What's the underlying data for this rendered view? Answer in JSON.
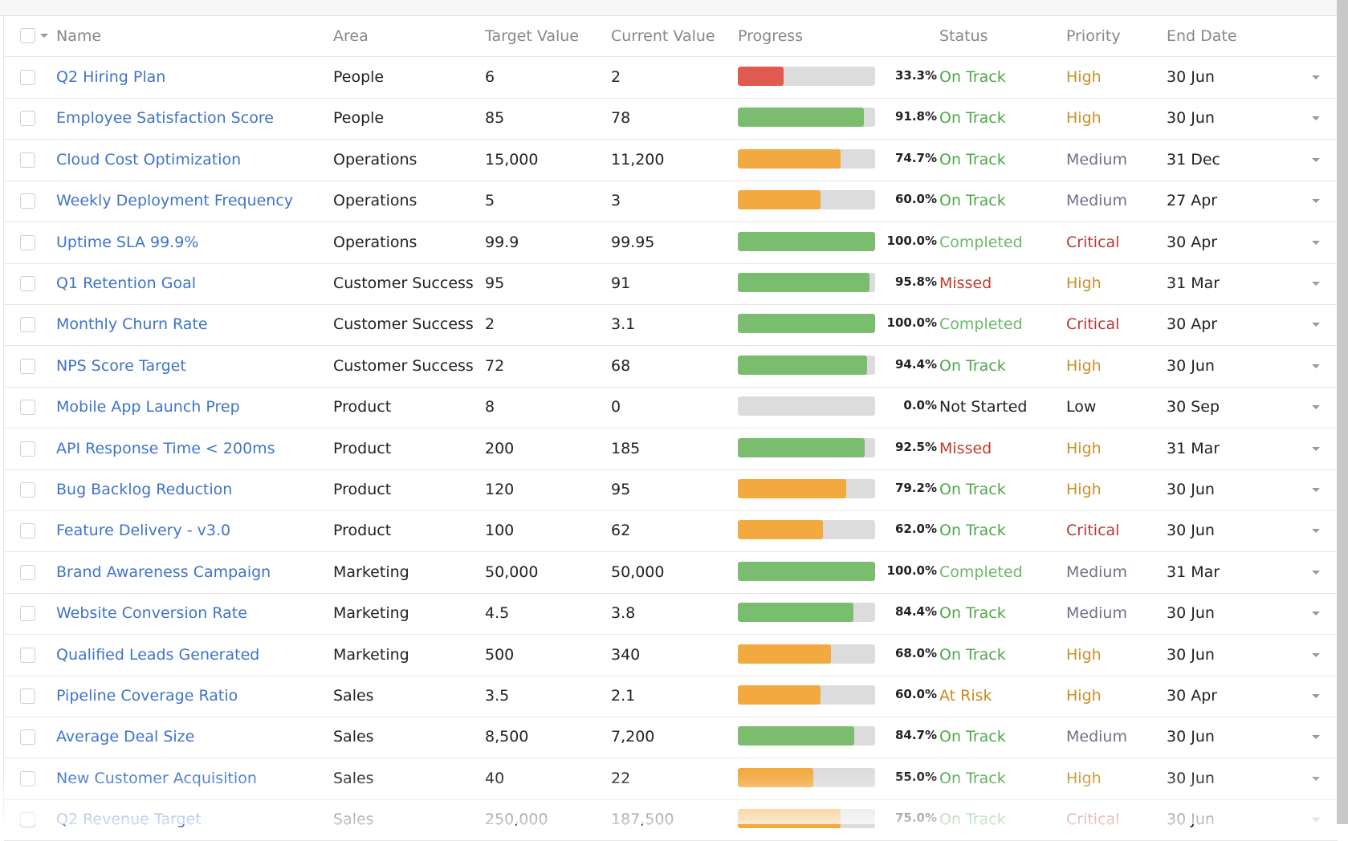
{
  "table": {
    "header": [
      "Name",
      "Area",
      "Target Value",
      "Current Value",
      "Progress",
      "Status",
      "Priority",
      "End Date"
    ],
    "rows": [
      {
        "name": "Q2 Hiring Plan",
        "area": "People",
        "target": "6",
        "current": "2",
        "progress": 33.3,
        "progress_label": "33.3%",
        "bar_color": "#e05a50",
        "status": "On Track",
        "status_color": "#4fa84a",
        "priority": "High",
        "priority_color": "#c8902a",
        "end_date": "30 Jun"
      },
      {
        "name": "Employee Satisfaction Score",
        "area": "People",
        "target": "85",
        "current": "78",
        "progress": 91.8,
        "progress_label": "91.8%",
        "bar_color": "#7bbd6f",
        "status": "On Track",
        "status_color": "#4fa84a",
        "priority": "High",
        "priority_color": "#c8902a",
        "end_date": "30 Jun"
      },
      {
        "name": "Cloud Cost Optimization",
        "area": "Operations",
        "target": "15,000",
        "current": "11,200",
        "progress": 74.7,
        "progress_label": "74.7%",
        "bar_color": "#f2a940",
        "status": "On Track",
        "status_color": "#4fa84a",
        "priority": "Medium",
        "priority_color": "#766d89",
        "end_date": "31 Dec"
      },
      {
        "name": "Weekly Deployment Frequency",
        "area": "Operations",
        "target": "5",
        "current": "3",
        "progress": 60.0,
        "progress_label": "60.0%",
        "bar_color": "#f2a940",
        "status": "On Track",
        "status_color": "#4fa84a",
        "priority": "Medium",
        "priority_color": "#766d89",
        "end_date": "27 Apr"
      },
      {
        "name": "Uptime SLA 99.9%",
        "area": "Operations",
        "target": "99.9",
        "current": "99.95",
        "progress": 100.0,
        "progress_label": "100.0%",
        "bar_color": "#7bbd6f",
        "status": "Completed",
        "status_color": "#6cba66",
        "priority": "Critical",
        "priority_color": "#b83a3a",
        "end_date": "30 Apr"
      },
      {
        "name": "Q1 Retention Goal",
        "area": "Customer Success",
        "target": "95",
        "current": "91",
        "progress": 95.8,
        "progress_label": "95.8%",
        "bar_color": "#7bbd6f",
        "status": "Missed",
        "status_color": "#c0392b",
        "priority": "High",
        "priority_color": "#c8902a",
        "end_date": "31 Mar"
      },
      {
        "name": "Monthly Churn Rate",
        "area": "Customer Success",
        "target": "2",
        "current": "3.1",
        "progress": 100.0,
        "progress_label": "100.0%",
        "bar_color": "#7bbd6f",
        "status": "Completed",
        "status_color": "#6cba66",
        "priority": "Critical",
        "priority_color": "#b83a3a",
        "end_date": "30 Apr"
      },
      {
        "name": "NPS Score Target",
        "area": "Customer Success",
        "target": "72",
        "current": "68",
        "progress": 94.4,
        "progress_label": "94.4%",
        "bar_color": "#7bbd6f",
        "status": "On Track",
        "status_color": "#4fa84a",
        "priority": "High",
        "priority_color": "#c8902a",
        "end_date": "30 Jun"
      },
      {
        "name": "Mobile App Launch Prep",
        "area": "Product",
        "target": "8",
        "current": "0",
        "progress": 0.0,
        "progress_label": "0.0%",
        "bar_color": "#7bbd6f",
        "status": "Not Started",
        "status_color": "#222222",
        "priority": "Low",
        "priority_color": "#222222",
        "end_date": "30 Sep"
      },
      {
        "name": "API Response Time < 200ms",
        "area": "Product",
        "target": "200",
        "current": "185",
        "progress": 92.5,
        "progress_label": "92.5%",
        "bar_color": "#7bbd6f",
        "status": "Missed",
        "status_color": "#c0392b",
        "priority": "High",
        "priority_color": "#c8902a",
        "end_date": "31 Mar"
      },
      {
        "name": "Bug Backlog Reduction",
        "area": "Product",
        "target": "120",
        "current": "95",
        "progress": 79.2,
        "progress_label": "79.2%",
        "bar_color": "#f2a940",
        "status": "On Track",
        "status_color": "#4fa84a",
        "priority": "High",
        "priority_color": "#c8902a",
        "end_date": "30 Jun"
      },
      {
        "name": "Feature Delivery - v3.0",
        "area": "Product",
        "target": "100",
        "current": "62",
        "progress": 62.0,
        "progress_label": "62.0%",
        "bar_color": "#f2a940",
        "status": "On Track",
        "status_color": "#4fa84a",
        "priority": "Critical",
        "priority_color": "#b83a3a",
        "end_date": "30 Jun"
      },
      {
        "name": "Brand Awareness Campaign",
        "area": "Marketing",
        "target": "50,000",
        "current": "50,000",
        "progress": 100.0,
        "progress_label": "100.0%",
        "bar_color": "#7bbd6f",
        "status": "Completed",
        "status_color": "#6cba66",
        "priority": "Medium",
        "priority_color": "#766d89",
        "end_date": "31 Mar"
      },
      {
        "name": "Website Conversion Rate",
        "area": "Marketing",
        "target": "4.5",
        "current": "3.8",
        "progress": 84.4,
        "progress_label": "84.4%",
        "bar_color": "#7bbd6f",
        "status": "On Track",
        "status_color": "#4fa84a",
        "priority": "Medium",
        "priority_color": "#766d89",
        "end_date": "30 Jun"
      },
      {
        "name": "Qualified Leads Generated",
        "area": "Marketing",
        "target": "500",
        "current": "340",
        "progress": 68.0,
        "progress_label": "68.0%",
        "bar_color": "#f2a940",
        "status": "On Track",
        "status_color": "#4fa84a",
        "priority": "High",
        "priority_color": "#c8902a",
        "end_date": "30 Jun"
      },
      {
        "name": "Pipeline Coverage Ratio",
        "area": "Sales",
        "target": "3.5",
        "current": "2.1",
        "progress": 60.0,
        "progress_label": "60.0%",
        "bar_color": "#f2a940",
        "status": "At Risk",
        "status_color": "#c98a1e",
        "priority": "High",
        "priority_color": "#c8902a",
        "end_date": "30 Apr"
      },
      {
        "name": "Average Deal Size",
        "area": "Sales",
        "target": "8,500",
        "current": "7,200",
        "progress": 84.7,
        "progress_label": "84.7%",
        "bar_color": "#7bbd6f",
        "status": "On Track",
        "status_color": "#4fa84a",
        "priority": "Medium",
        "priority_color": "#766d89",
        "end_date": "30 Jun"
      },
      {
        "name": "New Customer Acquisition",
        "area": "Sales",
        "target": "40",
        "current": "22",
        "progress": 55.0,
        "progress_label": "55.0%",
        "bar_color": "#f2a940",
        "status": "On Track",
        "status_color": "#4fa84a",
        "priority": "High",
        "priority_color": "#c8902a",
        "end_date": "30 Jun"
      },
      {
        "name": "Q2 Revenue Target",
        "area": "Sales",
        "target": "250,000",
        "current": "187,500",
        "progress": 75.0,
        "progress_label": "75.0%",
        "bar_color": "#f2a940",
        "status": "On Track",
        "status_color": "#4fa84a",
        "priority": "Critical",
        "priority_color": "#b83a3a",
        "end_date": "30 Jun"
      }
    ]
  }
}
